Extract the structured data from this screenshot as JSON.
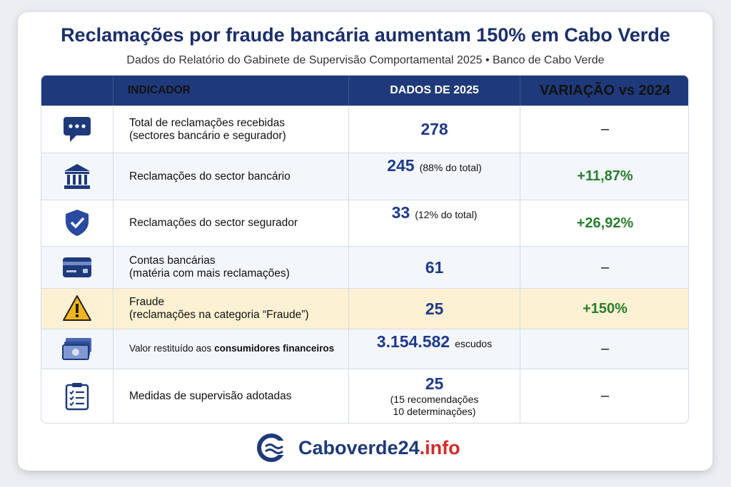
{
  "header": {
    "title": "Reclamações por fraude bancária aumentam 150% em Cabo Verde",
    "subtitle": "Dados do Relatório do Gabinete de Supervisão Comportamental 2025 • Banco de Cabo Verde"
  },
  "table": {
    "columns": [
      "INDICADOR",
      "DADOS DE 2025",
      "VARIAÇÃO vs 2024"
    ],
    "rows": [
      {
        "indicator": [
          "Total de reclamações recebidas",
          "(sectores bancário e segurador)"
        ],
        "value": "278",
        "change": "–"
      },
      {
        "indicator": [
          "Reclamações do sector bancário"
        ],
        "value": "245",
        "note": [
          "(88% do total)"
        ],
        "change": "+11,87%"
      },
      {
        "indicator": [
          "Reclamações do sector segurador"
        ],
        "value": "33",
        "note": [
          "(12% do total)"
        ],
        "change": "+26,92%"
      },
      {
        "indicator": [
          "Contas bancárias",
          "(matéria com mais reclamações)"
        ],
        "value": "61",
        "change": "–"
      },
      {
        "indicator": [
          "Fraude",
          "(reclamações na categoria “Fraude”)"
        ],
        "value": "25",
        "change": "+150%"
      },
      {
        "indicator": [
          "Valor restituído aos ",
          "consumidores financeiros"
        ],
        "value": "3.154.582",
        "note": [
          "escudos"
        ],
        "change": "–"
      },
      {
        "indicator": [
          "Medidas de supervisão adotadas"
        ],
        "value": "25",
        "note": [
          "(15 recomendações",
          "10 determinações)"
        ],
        "change": "–"
      }
    ]
  },
  "footer": {
    "brand": "Caboverde24",
    "domain": ".info"
  }
}
